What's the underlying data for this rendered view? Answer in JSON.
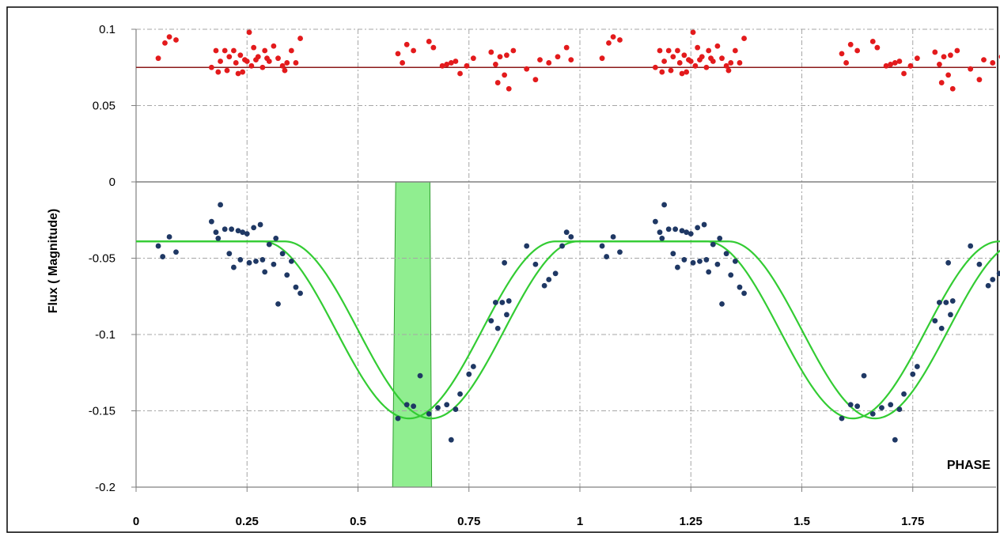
{
  "chart_data": {
    "type": "scatter",
    "xlabel": "PHASE",
    "ylabel": "Flux ( Magnitude)",
    "xlim": [
      0,
      2
    ],
    "ylim": [
      -0.2,
      0.1
    ],
    "x_ticks": [
      0,
      0.25,
      0.5,
      0.75,
      1,
      1.25,
      1.5,
      1.75
    ],
    "x_tick_labels": [
      "0",
      "0.25",
      "0.5",
      "0.75",
      "1",
      "1.25",
      "1.5",
      "1.75"
    ],
    "y_ticks": [
      0.1,
      0.05,
      0,
      -0.05,
      -0.1,
      -0.15,
      -0.2
    ],
    "y_tick_labels": [
      "0.1",
      "0.05",
      "0",
      "-0.05",
      "-0.1",
      "-0.15",
      "-0.2"
    ],
    "grid": true,
    "colors": {
      "residuals": "#e31a1c",
      "observations": "#1f3864",
      "model": "#33cc33",
      "reference_line": "#8b1a1a",
      "transit_band": "#90ee90"
    },
    "reference_line_y": 0.075,
    "shaded_band": {
      "x_top": [
        0.585,
        0.662
      ],
      "x_bottom": [
        0.578,
        0.666
      ],
      "y_range": [
        -0.2,
        0
      ]
    },
    "model_curves": [
      {
        "type": "transit",
        "baseline": -0.039,
        "depth": 0.116,
        "center": 0.615,
        "half_width": 0.33
      },
      {
        "type": "transit",
        "baseline": -0.039,
        "depth": 0.116,
        "center": 0.665,
        "half_width": 0.33
      }
    ],
    "series": [
      {
        "type": "scatter",
        "points": [
          [
            0.05,
            -0.042
          ],
          [
            0.06,
            -0.049
          ],
          [
            0.075,
            -0.036
          ],
          [
            0.09,
            -0.046
          ],
          [
            0.17,
            -0.026
          ],
          [
            0.18,
            -0.033
          ],
          [
            0.185,
            -0.037
          ],
          [
            0.19,
            -0.015
          ],
          [
            0.2,
            -0.031
          ],
          [
            0.21,
            -0.047
          ],
          [
            0.215,
            -0.031
          ],
          [
            0.22,
            -0.056
          ],
          [
            0.23,
            -0.032
          ],
          [
            0.235,
            -0.051
          ],
          [
            0.24,
            -0.033
          ],
          [
            0.25,
            -0.034
          ],
          [
            0.255,
            -0.053
          ],
          [
            0.265,
            -0.03
          ],
          [
            0.27,
            -0.052
          ],
          [
            0.28,
            -0.028
          ],
          [
            0.285,
            -0.051
          ],
          [
            0.29,
            -0.059
          ],
          [
            0.3,
            -0.041
          ],
          [
            0.31,
            -0.054
          ],
          [
            0.315,
            -0.037
          ],
          [
            0.32,
            -0.08
          ],
          [
            0.33,
            -0.047
          ],
          [
            0.34,
            -0.061
          ],
          [
            0.35,
            -0.052
          ],
          [
            0.36,
            -0.069
          ],
          [
            0.37,
            -0.073
          ],
          [
            0.59,
            -0.155
          ],
          [
            0.61,
            -0.146
          ],
          [
            0.625,
            -0.147
          ],
          [
            0.64,
            -0.127
          ],
          [
            0.66,
            -0.152
          ],
          [
            0.68,
            -0.148
          ],
          [
            0.7,
            -0.146
          ],
          [
            0.71,
            -0.169
          ],
          [
            0.72,
            -0.149
          ],
          [
            0.73,
            -0.139
          ],
          [
            0.75,
            -0.126
          ],
          [
            0.76,
            -0.121
          ],
          [
            0.8,
            -0.091
          ],
          [
            0.81,
            -0.079
          ],
          [
            0.815,
            -0.096
          ],
          [
            0.825,
            -0.079
          ],
          [
            0.83,
            -0.053
          ],
          [
            0.835,
            -0.087
          ],
          [
            0.84,
            -0.078
          ],
          [
            0.88,
            -0.042
          ],
          [
            0.9,
            -0.054
          ],
          [
            0.92,
            -0.068
          ],
          [
            0.93,
            -0.064
          ],
          [
            0.945,
            -0.06
          ],
          [
            0.96,
            -0.042
          ],
          [
            0.97,
            -0.033
          ],
          [
            0.98,
            -0.036
          ],
          [
            1.05,
            -0.042
          ],
          [
            1.06,
            -0.049
          ],
          [
            1.075,
            -0.036
          ],
          [
            1.09,
            -0.046
          ],
          [
            1.17,
            -0.026
          ],
          [
            1.18,
            -0.033
          ],
          [
            1.185,
            -0.037
          ],
          [
            1.19,
            -0.015
          ],
          [
            1.2,
            -0.031
          ],
          [
            1.21,
            -0.047
          ],
          [
            1.215,
            -0.031
          ],
          [
            1.22,
            -0.056
          ],
          [
            1.23,
            -0.032
          ],
          [
            1.235,
            -0.051
          ],
          [
            1.24,
            -0.033
          ],
          [
            1.25,
            -0.034
          ],
          [
            1.255,
            -0.053
          ],
          [
            1.265,
            -0.03
          ],
          [
            1.27,
            -0.052
          ],
          [
            1.28,
            -0.028
          ],
          [
            1.285,
            -0.051
          ],
          [
            1.29,
            -0.059
          ],
          [
            1.3,
            -0.041
          ],
          [
            1.31,
            -0.054
          ],
          [
            1.315,
            -0.037
          ],
          [
            1.32,
            -0.08
          ],
          [
            1.33,
            -0.047
          ],
          [
            1.34,
            -0.061
          ],
          [
            1.35,
            -0.052
          ],
          [
            1.36,
            -0.069
          ],
          [
            1.37,
            -0.073
          ],
          [
            1.59,
            -0.155
          ],
          [
            1.61,
            -0.146
          ],
          [
            1.625,
            -0.147
          ],
          [
            1.64,
            -0.127
          ],
          [
            1.66,
            -0.152
          ],
          [
            1.68,
            -0.148
          ],
          [
            1.7,
            -0.146
          ],
          [
            1.71,
            -0.169
          ],
          [
            1.72,
            -0.149
          ],
          [
            1.73,
            -0.139
          ],
          [
            1.75,
            -0.126
          ],
          [
            1.76,
            -0.121
          ],
          [
            1.8,
            -0.091
          ],
          [
            1.81,
            -0.079
          ],
          [
            1.815,
            -0.096
          ],
          [
            1.825,
            -0.079
          ],
          [
            1.83,
            -0.053
          ],
          [
            1.835,
            -0.087
          ],
          [
            1.84,
            -0.078
          ],
          [
            1.88,
            -0.042
          ],
          [
            1.9,
            -0.054
          ],
          [
            1.92,
            -0.068
          ],
          [
            1.93,
            -0.064
          ],
          [
            1.945,
            -0.06
          ]
        ]
      },
      {
        "type": "scatter",
        "points": [
          [
            0.05,
            0.081
          ],
          [
            0.065,
            0.091
          ],
          [
            0.075,
            0.095
          ],
          [
            0.09,
            0.093
          ],
          [
            0.17,
            0.075
          ],
          [
            0.18,
            0.086
          ],
          [
            0.185,
            0.072
          ],
          [
            0.19,
            0.079
          ],
          [
            0.2,
            0.086
          ],
          [
            0.205,
            0.073
          ],
          [
            0.21,
            0.082
          ],
          [
            0.22,
            0.086
          ],
          [
            0.225,
            0.078
          ],
          [
            0.23,
            0.071
          ],
          [
            0.235,
            0.083
          ],
          [
            0.24,
            0.072
          ],
          [
            0.245,
            0.08
          ],
          [
            0.25,
            0.079
          ],
          [
            0.255,
            0.098
          ],
          [
            0.26,
            0.076
          ],
          [
            0.265,
            0.088
          ],
          [
            0.27,
            0.08
          ],
          [
            0.275,
            0.082
          ],
          [
            0.285,
            0.075
          ],
          [
            0.29,
            0.086
          ],
          [
            0.295,
            0.081
          ],
          [
            0.3,
            0.079
          ],
          [
            0.31,
            0.089
          ],
          [
            0.32,
            0.081
          ],
          [
            0.33,
            0.076
          ],
          [
            0.335,
            0.073
          ],
          [
            0.34,
            0.078
          ],
          [
            0.35,
            0.086
          ],
          [
            0.36,
            0.078
          ],
          [
            0.37,
            0.094
          ],
          [
            0.59,
            0.084
          ],
          [
            0.6,
            0.078
          ],
          [
            0.61,
            0.09
          ],
          [
            0.625,
            0.086
          ],
          [
            0.66,
            0.092
          ],
          [
            0.67,
            0.088
          ],
          [
            0.69,
            0.076
          ],
          [
            0.7,
            0.077
          ],
          [
            0.71,
            0.078
          ],
          [
            0.72,
            0.079
          ],
          [
            0.73,
            0.071
          ],
          [
            0.745,
            0.076
          ],
          [
            0.76,
            0.081
          ],
          [
            0.8,
            0.085
          ],
          [
            0.81,
            0.077
          ],
          [
            0.815,
            0.065
          ],
          [
            0.82,
            0.082
          ],
          [
            0.83,
            0.07
          ],
          [
            0.835,
            0.083
          ],
          [
            0.84,
            0.061
          ],
          [
            0.85,
            0.086
          ],
          [
            0.88,
            0.074
          ],
          [
            0.9,
            0.067
          ],
          [
            0.91,
            0.08
          ],
          [
            0.93,
            0.078
          ],
          [
            0.95,
            0.082
          ],
          [
            0.97,
            0.088
          ],
          [
            0.98,
            0.08
          ],
          [
            1.05,
            0.081
          ],
          [
            1.065,
            0.091
          ],
          [
            1.075,
            0.095
          ],
          [
            1.09,
            0.093
          ],
          [
            1.17,
            0.075
          ],
          [
            1.18,
            0.086
          ],
          [
            1.185,
            0.072
          ],
          [
            1.19,
            0.079
          ],
          [
            1.2,
            0.086
          ],
          [
            1.205,
            0.073
          ],
          [
            1.21,
            0.082
          ],
          [
            1.22,
            0.086
          ],
          [
            1.225,
            0.078
          ],
          [
            1.23,
            0.071
          ],
          [
            1.235,
            0.083
          ],
          [
            1.24,
            0.072
          ],
          [
            1.245,
            0.08
          ],
          [
            1.25,
            0.079
          ],
          [
            1.255,
            0.098
          ],
          [
            1.26,
            0.076
          ],
          [
            1.265,
            0.088
          ],
          [
            1.27,
            0.08
          ],
          [
            1.275,
            0.082
          ],
          [
            1.285,
            0.075
          ],
          [
            1.29,
            0.086
          ],
          [
            1.295,
            0.081
          ],
          [
            1.3,
            0.079
          ],
          [
            1.31,
            0.089
          ],
          [
            1.32,
            0.081
          ],
          [
            1.33,
            0.076
          ],
          [
            1.335,
            0.073
          ],
          [
            1.34,
            0.078
          ],
          [
            1.35,
            0.086
          ],
          [
            1.36,
            0.078
          ],
          [
            1.37,
            0.094
          ],
          [
            1.59,
            0.084
          ],
          [
            1.6,
            0.078
          ],
          [
            1.61,
            0.09
          ],
          [
            1.625,
            0.086
          ],
          [
            1.66,
            0.092
          ],
          [
            1.67,
            0.088
          ],
          [
            1.69,
            0.076
          ],
          [
            1.7,
            0.077
          ],
          [
            1.71,
            0.078
          ],
          [
            1.72,
            0.079
          ],
          [
            1.73,
            0.071
          ],
          [
            1.745,
            0.076
          ],
          [
            1.76,
            0.081
          ],
          [
            1.8,
            0.085
          ],
          [
            1.81,
            0.077
          ],
          [
            1.815,
            0.065
          ],
          [
            1.82,
            0.082
          ],
          [
            1.83,
            0.07
          ],
          [
            1.835,
            0.083
          ],
          [
            1.84,
            0.061
          ],
          [
            1.85,
            0.086
          ],
          [
            1.88,
            0.074
          ],
          [
            1.9,
            0.067
          ],
          [
            1.91,
            0.08
          ],
          [
            1.93,
            0.078
          ],
          [
            1.95,
            0.082
          ]
        ]
      }
    ]
  }
}
